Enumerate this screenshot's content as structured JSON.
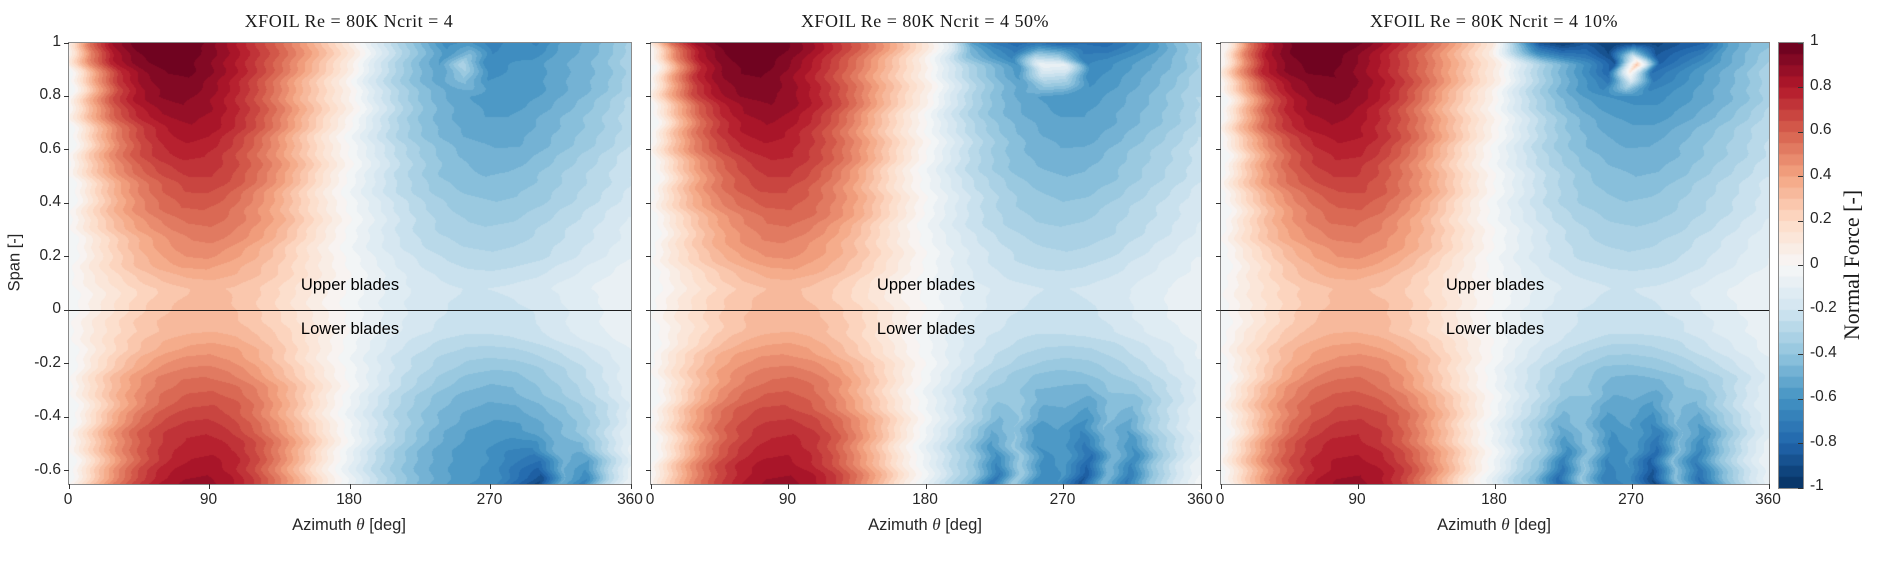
{
  "figure": {
    "background": "#ffffff"
  },
  "axes": {
    "xlabel_pre": "Azimuth ",
    "xlabel_theta": "θ",
    "xlabel_post": " [deg]",
    "ylabel": "Span [-]",
    "xlim": [
      0,
      360
    ],
    "ylim": [
      -0.65,
      1
    ],
    "xticks": [
      "0",
      "90",
      "180",
      "270",
      "360"
    ],
    "yticks": [
      "1",
      "0.8",
      "0.6",
      "0.4",
      "0.2",
      "0",
      "-0.2",
      "-0.4",
      "-0.6"
    ]
  },
  "annotations": {
    "upper": "Upper blades",
    "lower": "Lower blades",
    "divider_span": 0
  },
  "colorbar": {
    "label": "Normal Force [-]",
    "min": -1,
    "max": 1,
    "level_step": 0.05,
    "ticks": [
      "1",
      "0.8",
      "0.6",
      "0.4",
      "0.2",
      "0",
      "-0.2",
      "-0.4",
      "-0.6",
      "-0.8",
      "-1"
    ]
  },
  "colormap": {
    "name": "RdBu reversed",
    "values": [
      -1,
      -0.8,
      -0.6,
      -0.4,
      -0.2,
      0,
      0.2,
      0.4,
      0.6,
      0.8,
      1
    ],
    "colors": [
      "#053061",
      "#2166ac",
      "#4393c3",
      "#92c5de",
      "#d1e5f0",
      "#f7f7f7",
      "#fddbc7",
      "#f4a582",
      "#d6604d",
      "#b2182b",
      "#67001f"
    ]
  },
  "chart_data": [
    {
      "type": "heatmap",
      "title": "XFOIL Re = 80K Ncrit = 4",
      "x_azimuth_deg": [
        0,
        15,
        30,
        45,
        60,
        75,
        90,
        105,
        120,
        135,
        150,
        165,
        180,
        195,
        210,
        225,
        240,
        255,
        270,
        285,
        300,
        315,
        330,
        345,
        360
      ],
      "y_span": [
        1.0,
        0.92,
        0.8,
        0.65,
        0.5,
        0.35,
        0.2,
        0.08,
        -0.08,
        -0.25,
        -0.45,
        -0.65
      ],
      "values": [
        [
          0.02,
          0.55,
          0.85,
          0.97,
          1,
          1,
          0.95,
          0.85,
          0.72,
          0.6,
          0.45,
          0.28,
          0.1,
          -0.12,
          -0.3,
          -0.45,
          -0.62,
          -0.58,
          -0.68,
          -0.62,
          -0.66,
          -0.55,
          -0.5,
          -0.44,
          -0.35
        ],
        [
          0,
          0.45,
          0.78,
          0.92,
          0.97,
          0.97,
          0.9,
          0.8,
          0.68,
          0.55,
          0.4,
          0.24,
          0.08,
          -0.14,
          -0.3,
          -0.44,
          -0.55,
          -0.3,
          -0.62,
          -0.6,
          -0.58,
          -0.52,
          -0.48,
          -0.42,
          -0.32
        ],
        [
          -0.02,
          0.35,
          0.65,
          0.82,
          0.9,
          0.92,
          0.88,
          0.79,
          0.67,
          0.52,
          0.35,
          0.2,
          0.05,
          -0.15,
          -0.3,
          -0.42,
          -0.5,
          -0.55,
          -0.58,
          -0.58,
          -0.55,
          -0.5,
          -0.45,
          -0.38,
          -0.3
        ],
        [
          -0.03,
          0.28,
          0.52,
          0.68,
          0.78,
          0.82,
          0.8,
          0.72,
          0.61,
          0.47,
          0.31,
          0.15,
          0,
          -0.15,
          -0.28,
          -0.38,
          -0.45,
          -0.5,
          -0.52,
          -0.52,
          -0.48,
          -0.43,
          -0.38,
          -0.32,
          -0.25
        ],
        [
          -0.04,
          0.22,
          0.42,
          0.56,
          0.65,
          0.7,
          0.7,
          0.64,
          0.54,
          0.42,
          0.27,
          0.12,
          -0.02,
          -0.14,
          -0.25,
          -0.33,
          -0.4,
          -0.43,
          -0.45,
          -0.44,
          -0.41,
          -0.36,
          -0.31,
          -0.26,
          -0.2
        ],
        [
          -0.04,
          0.16,
          0.32,
          0.44,
          0.52,
          0.57,
          0.58,
          0.54,
          0.46,
          0.36,
          0.23,
          0.1,
          -0.02,
          -0.12,
          -0.21,
          -0.28,
          -0.33,
          -0.36,
          -0.37,
          -0.36,
          -0.33,
          -0.29,
          -0.25,
          -0.2,
          -0.15
        ],
        [
          -0.04,
          0.11,
          0.23,
          0.33,
          0.4,
          0.45,
          0.46,
          0.42,
          0.36,
          0.28,
          0.18,
          0.08,
          -0.02,
          -0.1,
          -0.17,
          -0.22,
          -0.26,
          -0.28,
          -0.29,
          -0.28,
          -0.26,
          -0.22,
          -0.18,
          -0.14,
          -0.1
        ],
        [
          -0.03,
          0.07,
          0.15,
          0.22,
          0.27,
          0.3,
          0.31,
          0.29,
          0.25,
          0.19,
          0.12,
          0.05,
          -0.01,
          -0.07,
          -0.12,
          -0.16,
          -0.18,
          -0.2,
          -0.2,
          -0.19,
          -0.17,
          -0.14,
          -0.11,
          -0.08,
          -0.06
        ],
        [
          -0.03,
          0.09,
          0.18,
          0.26,
          0.31,
          0.34,
          0.35,
          0.33,
          0.28,
          0.22,
          0.14,
          0.06,
          -0.02,
          -0.09,
          -0.15,
          -0.19,
          -0.22,
          -0.24,
          -0.24,
          -0.23,
          -0.21,
          -0.17,
          -0.13,
          -0.1,
          -0.07
        ],
        [
          -0.04,
          0.15,
          0.3,
          0.42,
          0.5,
          0.54,
          0.55,
          0.52,
          0.45,
          0.34,
          0.22,
          0.09,
          -0.03,
          -0.14,
          -0.24,
          -0.31,
          -0.37,
          -0.41,
          -0.43,
          -0.42,
          -0.38,
          -0.33,
          -0.27,
          -0.2,
          -0.12
        ],
        [
          -0.04,
          0.2,
          0.42,
          0.58,
          0.68,
          0.73,
          0.74,
          0.7,
          0.6,
          0.46,
          0.3,
          0.12,
          -0.05,
          -0.2,
          -0.32,
          -0.42,
          -0.5,
          -0.55,
          -0.58,
          -0.57,
          -0.52,
          -0.46,
          -0.38,
          -0.26,
          -0.12
        ],
        [
          -0.02,
          0.26,
          0.5,
          0.68,
          0.8,
          0.86,
          0.87,
          0.82,
          0.7,
          0.52,
          0.32,
          0.1,
          -0.08,
          -0.25,
          -0.38,
          -0.48,
          -0.55,
          -0.6,
          -0.62,
          -0.78,
          -0.92,
          -0.5,
          -0.68,
          -0.3,
          -0.05
        ]
      ]
    },
    {
      "type": "heatmap",
      "title": "XFOIL Re = 80K Ncrit = 4 50%",
      "x_azimuth_deg": [
        0,
        15,
        30,
        45,
        60,
        75,
        90,
        105,
        120,
        135,
        150,
        165,
        180,
        195,
        210,
        225,
        240,
        255,
        270,
        285,
        300,
        315,
        330,
        345,
        360
      ],
      "y_span": [
        1.0,
        0.92,
        0.8,
        0.65,
        0.5,
        0.35,
        0.2,
        0.08,
        -0.08,
        -0.25,
        -0.45,
        -0.65
      ],
      "values": [
        [
          0.02,
          0.55,
          0.85,
          0.97,
          1,
          1,
          0.95,
          0.85,
          0.72,
          0.6,
          0.45,
          0.28,
          0.1,
          -0.12,
          -0.55,
          -0.7,
          -0.78,
          -0.72,
          -0.8,
          -0.75,
          -0.78,
          -0.7,
          -0.6,
          -0.45,
          -0.35
        ],
        [
          0,
          0.45,
          0.78,
          0.92,
          0.97,
          0.97,
          0.9,
          0.8,
          0.68,
          0.55,
          0.4,
          0.24,
          0.08,
          -0.14,
          -0.32,
          -0.46,
          -0.6,
          -0.05,
          -0.08,
          -0.65,
          -0.6,
          -0.54,
          -0.48,
          -0.42,
          -0.32
        ],
        [
          -0.02,
          0.35,
          0.65,
          0.82,
          0.9,
          0.92,
          0.88,
          0.79,
          0.67,
          0.52,
          0.35,
          0.2,
          0.05,
          -0.15,
          -0.3,
          -0.42,
          -0.5,
          -0.55,
          -0.58,
          -0.58,
          -0.55,
          -0.5,
          -0.45,
          -0.38,
          -0.3
        ],
        [
          -0.03,
          0.28,
          0.52,
          0.68,
          0.78,
          0.82,
          0.8,
          0.72,
          0.61,
          0.47,
          0.31,
          0.15,
          0,
          -0.15,
          -0.28,
          -0.38,
          -0.45,
          -0.5,
          -0.52,
          -0.52,
          -0.48,
          -0.43,
          -0.38,
          -0.32,
          -0.25
        ],
        [
          -0.04,
          0.22,
          0.42,
          0.56,
          0.65,
          0.7,
          0.7,
          0.64,
          0.54,
          0.42,
          0.27,
          0.12,
          -0.02,
          -0.14,
          -0.25,
          -0.33,
          -0.4,
          -0.43,
          -0.45,
          -0.44,
          -0.41,
          -0.36,
          -0.31,
          -0.26,
          -0.2
        ],
        [
          -0.04,
          0.16,
          0.32,
          0.44,
          0.52,
          0.57,
          0.58,
          0.54,
          0.46,
          0.36,
          0.23,
          0.1,
          -0.02,
          -0.12,
          -0.21,
          -0.28,
          -0.33,
          -0.36,
          -0.37,
          -0.36,
          -0.33,
          -0.29,
          -0.25,
          -0.2,
          -0.15
        ],
        [
          -0.04,
          0.11,
          0.23,
          0.33,
          0.4,
          0.45,
          0.46,
          0.42,
          0.36,
          0.28,
          0.18,
          0.08,
          -0.02,
          -0.1,
          -0.17,
          -0.22,
          -0.26,
          -0.28,
          -0.29,
          -0.28,
          -0.26,
          -0.22,
          -0.18,
          -0.14,
          -0.1
        ],
        [
          -0.03,
          0.07,
          0.15,
          0.22,
          0.27,
          0.3,
          0.31,
          0.29,
          0.25,
          0.19,
          0.12,
          0.05,
          -0.01,
          -0.07,
          -0.12,
          -0.16,
          -0.18,
          -0.2,
          -0.2,
          -0.19,
          -0.17,
          -0.14,
          -0.11,
          -0.08,
          -0.06
        ],
        [
          -0.03,
          0.09,
          0.18,
          0.26,
          0.31,
          0.34,
          0.35,
          0.33,
          0.28,
          0.22,
          0.14,
          0.06,
          -0.02,
          -0.09,
          -0.15,
          -0.19,
          -0.22,
          -0.24,
          -0.24,
          -0.23,
          -0.21,
          -0.17,
          -0.13,
          -0.1,
          -0.07
        ],
        [
          -0.04,
          0.15,
          0.3,
          0.42,
          0.5,
          0.54,
          0.55,
          0.52,
          0.45,
          0.34,
          0.22,
          0.09,
          -0.03,
          -0.14,
          -0.24,
          -0.31,
          -0.37,
          -0.41,
          -0.43,
          -0.42,
          -0.38,
          -0.33,
          -0.27,
          -0.2,
          -0.12
        ],
        [
          -0.04,
          0.2,
          0.42,
          0.58,
          0.68,
          0.73,
          0.74,
          0.7,
          0.6,
          0.46,
          0.3,
          0.12,
          -0.05,
          -0.2,
          -0.34,
          -0.5,
          -0.4,
          -0.58,
          -0.55,
          -0.65,
          -0.45,
          -0.55,
          -0.35,
          -0.22,
          -0.1
        ],
        [
          -0.02,
          0.26,
          0.5,
          0.68,
          0.8,
          0.86,
          0.87,
          0.82,
          0.7,
          0.52,
          0.32,
          0.1,
          -0.08,
          -0.28,
          -0.42,
          -0.75,
          -0.35,
          -0.65,
          -0.6,
          -0.88,
          -0.45,
          -0.72,
          -0.4,
          -0.2,
          -0.04
        ]
      ]
    },
    {
      "type": "heatmap",
      "title": "XFOIL Re = 80K Ncrit = 4 10%",
      "x_azimuth_deg": [
        0,
        15,
        30,
        45,
        60,
        75,
        90,
        105,
        120,
        135,
        150,
        165,
        180,
        195,
        210,
        225,
        240,
        255,
        270,
        285,
        300,
        315,
        330,
        345,
        360
      ],
      "y_span": [
        1.0,
        0.92,
        0.8,
        0.65,
        0.5,
        0.35,
        0.2,
        0.08,
        -0.08,
        -0.25,
        -0.45,
        -0.65
      ],
      "values": [
        [
          0.02,
          0.55,
          0.85,
          0.97,
          1,
          1,
          0.95,
          0.85,
          0.72,
          0.6,
          0.45,
          0.28,
          0.1,
          -0.4,
          -0.85,
          -0.95,
          -0.85,
          -0.95,
          -0.9,
          -0.92,
          -0.85,
          -0.8,
          -0.55,
          -0.45,
          -0.4
        ],
        [
          0,
          0.45,
          0.78,
          0.92,
          0.97,
          0.97,
          0.9,
          0.8,
          0.68,
          0.55,
          0.4,
          0.24,
          0.08,
          -0.16,
          -0.35,
          -0.5,
          -0.65,
          -0.85,
          0.3,
          -0.8,
          -0.7,
          -0.6,
          -0.52,
          -0.44,
          -0.34
        ],
        [
          -0.02,
          0.35,
          0.65,
          0.82,
          0.9,
          0.92,
          0.88,
          0.79,
          0.67,
          0.52,
          0.35,
          0.2,
          0.05,
          -0.16,
          -0.32,
          -0.45,
          -0.55,
          -0.6,
          -0.62,
          -0.62,
          -0.58,
          -0.53,
          -0.47,
          -0.4,
          -0.31
        ],
        [
          -0.03,
          0.28,
          0.52,
          0.68,
          0.78,
          0.82,
          0.8,
          0.72,
          0.61,
          0.47,
          0.31,
          0.15,
          0,
          -0.15,
          -0.28,
          -0.38,
          -0.45,
          -0.5,
          -0.52,
          -0.52,
          -0.48,
          -0.43,
          -0.38,
          -0.32,
          -0.25
        ],
        [
          -0.04,
          0.22,
          0.42,
          0.56,
          0.65,
          0.7,
          0.7,
          0.64,
          0.54,
          0.42,
          0.27,
          0.12,
          -0.02,
          -0.14,
          -0.25,
          -0.33,
          -0.4,
          -0.43,
          -0.45,
          -0.44,
          -0.41,
          -0.36,
          -0.31,
          -0.26,
          -0.2
        ],
        [
          -0.04,
          0.16,
          0.32,
          0.44,
          0.52,
          0.57,
          0.58,
          0.54,
          0.46,
          0.36,
          0.23,
          0.1,
          -0.02,
          -0.12,
          -0.21,
          -0.28,
          -0.33,
          -0.36,
          -0.37,
          -0.36,
          -0.33,
          -0.29,
          -0.25,
          -0.2,
          -0.15
        ],
        [
          -0.04,
          0.11,
          0.23,
          0.33,
          0.4,
          0.45,
          0.46,
          0.42,
          0.36,
          0.28,
          0.18,
          0.08,
          -0.02,
          -0.1,
          -0.17,
          -0.22,
          -0.26,
          -0.28,
          -0.29,
          -0.28,
          -0.26,
          -0.22,
          -0.18,
          -0.14,
          -0.1
        ],
        [
          -0.03,
          0.07,
          0.15,
          0.22,
          0.27,
          0.3,
          0.31,
          0.29,
          0.25,
          0.19,
          0.12,
          0.05,
          -0.01,
          -0.07,
          -0.12,
          -0.16,
          -0.18,
          -0.2,
          -0.2,
          -0.19,
          -0.17,
          -0.14,
          -0.11,
          -0.08,
          -0.06
        ],
        [
          -0.03,
          0.09,
          0.18,
          0.26,
          0.31,
          0.34,
          0.35,
          0.33,
          0.28,
          0.22,
          0.14,
          0.06,
          -0.02,
          -0.09,
          -0.15,
          -0.19,
          -0.22,
          -0.24,
          -0.24,
          -0.23,
          -0.21,
          -0.17,
          -0.13,
          -0.1,
          -0.07
        ],
        [
          -0.04,
          0.15,
          0.3,
          0.42,
          0.5,
          0.54,
          0.55,
          0.52,
          0.45,
          0.34,
          0.22,
          0.09,
          -0.03,
          -0.15,
          -0.25,
          -0.33,
          -0.39,
          -0.45,
          -0.46,
          -0.44,
          -0.4,
          -0.34,
          -0.28,
          -0.2,
          -0.12
        ],
        [
          -0.04,
          0.2,
          0.42,
          0.58,
          0.68,
          0.73,
          0.74,
          0.7,
          0.6,
          0.46,
          0.3,
          0.12,
          -0.05,
          -0.21,
          -0.34,
          -0.52,
          -0.42,
          -0.6,
          -0.55,
          -0.68,
          -0.45,
          -0.58,
          -0.38,
          -0.22,
          -0.1
        ],
        [
          -0.02,
          0.26,
          0.5,
          0.68,
          0.8,
          0.86,
          0.87,
          0.82,
          0.7,
          0.52,
          0.32,
          0.1,
          -0.08,
          -0.3,
          -0.45,
          -0.8,
          -0.38,
          -0.7,
          -0.62,
          -0.92,
          -0.42,
          -0.78,
          -0.45,
          -0.22,
          -0.05
        ]
      ]
    }
  ]
}
